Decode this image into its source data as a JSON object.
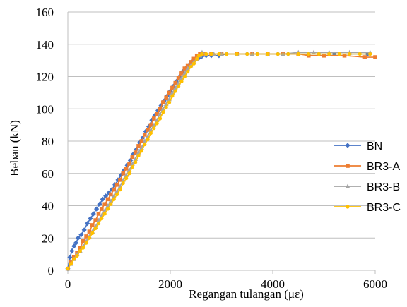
{
  "chart_data": {
    "type": "line",
    "title": "",
    "xlabel": "Regangan tulangan (με)",
    "ylabel": "Beban  (kN)",
    "xlim": [
      0,
      6000
    ],
    "ylim": [
      0,
      160
    ],
    "xticks": [
      0,
      2000,
      4000,
      6000
    ],
    "yticks": [
      0,
      20,
      40,
      60,
      80,
      100,
      120,
      140,
      160
    ],
    "grid": "horizontal",
    "legend_position": "right",
    "series": [
      {
        "name": "BN",
        "color": "#4472C4",
        "marker": "diamond",
        "x": [
          0,
          40,
          80,
          120,
          160,
          200,
          260,
          320,
          380,
          440,
          500,
          560,
          620,
          680,
          740,
          800,
          860,
          920,
          980,
          1040,
          1100,
          1160,
          1220,
          1280,
          1340,
          1400,
          1460,
          1520,
          1580,
          1640,
          1700,
          1760,
          1820,
          1880,
          1940,
          2000,
          2060,
          2120,
          2180,
          2240,
          2300,
          2360,
          2420,
          2480,
          2540,
          2600,
          2700,
          2800,
          2950,
          3100,
          3300,
          3500,
          3700,
          3900,
          4100,
          4300,
          4500,
          4700,
          4900,
          5200,
          5500,
          5850
        ],
        "y": [
          1,
          8,
          12,
          15,
          17,
          20,
          22,
          25,
          29,
          32,
          35,
          38,
          41,
          44,
          46,
          48,
          50,
          53,
          56,
          59,
          62,
          65,
          68,
          72,
          75,
          79,
          82,
          86,
          89,
          93,
          96,
          99,
          102,
          105,
          108,
          111,
          114,
          117,
          120,
          123,
          125,
          127,
          129,
          130,
          131,
          132,
          133,
          133,
          133,
          134,
          134,
          134,
          134,
          134,
          134,
          134,
          134,
          134,
          134,
          134,
          134,
          134
        ]
      },
      {
        "name": "BR3-A",
        "color": "#ED7D31",
        "marker": "square",
        "x": [
          0,
          60,
          120,
          180,
          240,
          300,
          360,
          420,
          480,
          540,
          600,
          660,
          720,
          780,
          840,
          900,
          960,
          1020,
          1080,
          1140,
          1200,
          1260,
          1320,
          1380,
          1440,
          1500,
          1560,
          1620,
          1680,
          1740,
          1800,
          1860,
          1920,
          1980,
          2040,
          2100,
          2160,
          2220,
          2280,
          2340,
          2400,
          2460,
          2520,
          2580,
          2650,
          2800,
          3000,
          3300,
          3600,
          3900,
          4200,
          4500,
          4700,
          5000,
          5400,
          5800,
          6000
        ],
        "y": [
          1,
          5,
          8,
          11,
          14,
          18,
          21,
          24,
          28,
          31,
          35,
          38,
          41,
          44,
          47,
          50,
          53,
          56,
          60,
          63,
          66,
          70,
          73,
          77,
          80,
          84,
          87,
          90,
          94,
          97,
          100,
          104,
          107,
          110,
          113,
          116,
          119,
          122,
          125,
          127,
          129,
          131,
          133,
          134,
          134,
          134,
          134,
          134,
          134,
          134,
          134,
          134,
          133,
          133,
          133,
          132,
          132
        ]
      },
      {
        "name": "BR3-B",
        "color": "#A5A5A5",
        "marker": "triangle",
        "x": [
          0,
          60,
          120,
          180,
          240,
          300,
          360,
          420,
          480,
          540,
          600,
          660,
          720,
          780,
          840,
          900,
          960,
          1020,
          1080,
          1140,
          1200,
          1260,
          1320,
          1380,
          1440,
          1500,
          1560,
          1620,
          1680,
          1740,
          1800,
          1860,
          1920,
          1980,
          2040,
          2100,
          2160,
          2220,
          2280,
          2340,
          2400,
          2460,
          2520,
          2580,
          2620,
          2700,
          2850,
          3000,
          3300,
          3600,
          3900,
          4200,
          4500,
          4800,
          5100,
          5500,
          5900
        ],
        "y": [
          1,
          4,
          7,
          10,
          12,
          15,
          18,
          21,
          24,
          27,
          31,
          34,
          37,
          40,
          43,
          46,
          49,
          52,
          56,
          59,
          62,
          66,
          69,
          73,
          76,
          80,
          83,
          87,
          90,
          93,
          97,
          100,
          103,
          106,
          110,
          113,
          116,
          119,
          122,
          125,
          127,
          129,
          131,
          133,
          135,
          134,
          134,
          134,
          134,
          134,
          134,
          134,
          135,
          135,
          135,
          135,
          135
        ]
      },
      {
        "name": "BR3-C",
        "color": "#FFC000",
        "marker": "circle",
        "x": [
          0,
          60,
          120,
          180,
          240,
          300,
          360,
          420,
          480,
          540,
          600,
          660,
          720,
          780,
          840,
          900,
          960,
          1020,
          1080,
          1140,
          1200,
          1260,
          1320,
          1380,
          1440,
          1500,
          1560,
          1620,
          1680,
          1740,
          1800,
          1860,
          1920,
          1980,
          2040,
          2100,
          2160,
          2220,
          2280,
          2340,
          2400,
          2460,
          2520,
          2560,
          2620,
          2700,
          2800,
          2950,
          3100,
          3300,
          3500,
          3700,
          3900,
          4100,
          4300,
          4500,
          4700,
          4900,
          5100,
          5300,
          5500,
          5700,
          5900
        ],
        "y": [
          1,
          4,
          7,
          9,
          12,
          14,
          17,
          20,
          23,
          26,
          29,
          32,
          35,
          38,
          41,
          44,
          47,
          50,
          54,
          57,
          60,
          64,
          67,
          71,
          74,
          78,
          81,
          85,
          88,
          91,
          94,
          98,
          101,
          104,
          108,
          111,
          114,
          117,
          120,
          123,
          126,
          128,
          131,
          133,
          134,
          134,
          134,
          134,
          134,
          134,
          134,
          134,
          134,
          134,
          134,
          134,
          134,
          134,
          134,
          134,
          134,
          134,
          134
        ]
      }
    ]
  }
}
